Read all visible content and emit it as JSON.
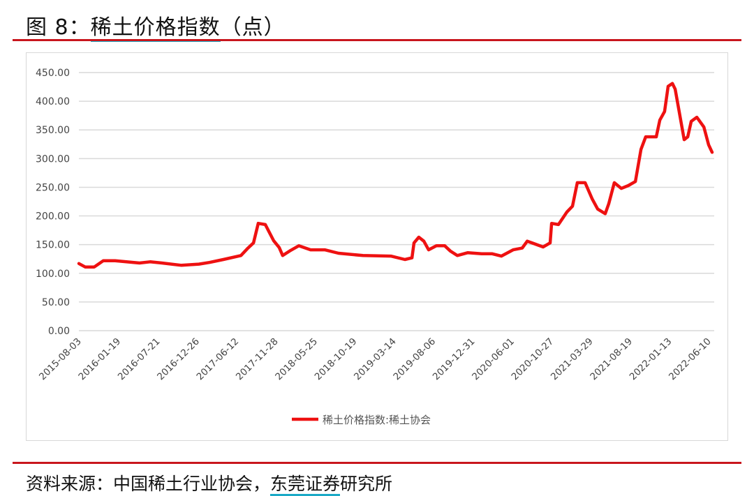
{
  "title": {
    "prefix": "图 8：",
    "main": "稀土价格指数",
    "suffix": "（点）"
  },
  "source": {
    "prefix": "资料来源：中国稀土行业协会，",
    "highlight": "东莞证券",
    "suffix": "研究所"
  },
  "colors": {
    "series": "#ee1111",
    "rule": "#c8161d",
    "underline": "#1aa9c6",
    "grid": "#d9d9d9"
  },
  "chart_data": {
    "type": "line",
    "title": "",
    "xlabel": "",
    "ylabel": "",
    "ylim": [
      0,
      450
    ],
    "yticks": [
      "0.00",
      "50.00",
      "100.00",
      "150.00",
      "200.00",
      "250.00",
      "300.00",
      "350.00",
      "400.00",
      "450.00"
    ],
    "xticks": [
      "2015-08-03",
      "2016-01-19",
      "2016-07-21",
      "2016-12-26",
      "2017-06-12",
      "2017-11-28",
      "2018-05-25",
      "2018-10-19",
      "2019-03-14",
      "2019-08-06",
      "2019-12-31",
      "2020-06-01",
      "2020-10-27",
      "2021-03-29",
      "2021-08-19",
      "2022-01-13",
      "2022-06-10"
    ],
    "grid": true,
    "legend_position": "bottom",
    "series": [
      {
        "name": "稀土价格指数:稀土协会",
        "points": [
          [
            "2015-08-03",
            117
          ],
          [
            "2015-08-28",
            111
          ],
          [
            "2015-10-03",
            111
          ],
          [
            "2015-11-08",
            122
          ],
          [
            "2015-12-25",
            122
          ],
          [
            "2016-03-31",
            118
          ],
          [
            "2016-05-12",
            120
          ],
          [
            "2016-06-28",
            118
          ],
          [
            "2016-09-14",
            114
          ],
          [
            "2016-11-22",
            116
          ],
          [
            "2017-01-03",
            119
          ],
          [
            "2017-02-27",
            124
          ],
          [
            "2017-05-08",
            131
          ],
          [
            "2017-06-05",
            144
          ],
          [
            "2017-06-27",
            153
          ],
          [
            "2017-07-16",
            187
          ],
          [
            "2017-08-13",
            185
          ],
          [
            "2017-09-15",
            157
          ],
          [
            "2017-10-07",
            145
          ],
          [
            "2017-10-21",
            131
          ],
          [
            "2017-11-18",
            139
          ],
          [
            "2017-12-24",
            148
          ],
          [
            "2018-02-09",
            141
          ],
          [
            "2018-04-06",
            141
          ],
          [
            "2018-05-31",
            135
          ],
          [
            "2018-09-05",
            131
          ],
          [
            "2018-12-25",
            130
          ],
          [
            "2019-02-19",
            124
          ],
          [
            "2019-03-19",
            127
          ],
          [
            "2019-03-27",
            153
          ],
          [
            "2019-04-15",
            163
          ],
          [
            "2019-05-05",
            156
          ],
          [
            "2019-05-24",
            141
          ],
          [
            "2019-06-24",
            148
          ],
          [
            "2019-07-27",
            148
          ],
          [
            "2019-08-18",
            139
          ],
          [
            "2019-09-15",
            131
          ],
          [
            "2019-10-27",
            136
          ],
          [
            "2019-12-21",
            134
          ],
          [
            "2020-02-01",
            134
          ],
          [
            "2020-03-08",
            130
          ],
          [
            "2020-04-24",
            141
          ],
          [
            "2020-05-30",
            144
          ],
          [
            "2020-06-19",
            156
          ],
          [
            "2020-08-21",
            146
          ],
          [
            "2020-09-18",
            153
          ],
          [
            "2020-09-24",
            187
          ],
          [
            "2020-10-21",
            185
          ],
          [
            "2020-11-24",
            207
          ],
          [
            "2020-12-16",
            217
          ],
          [
            "2021-01-04",
            258
          ],
          [
            "2021-02-04",
            258
          ],
          [
            "2021-03-04",
            230
          ],
          [
            "2021-03-26",
            212
          ],
          [
            "2021-04-25",
            204
          ],
          [
            "2021-05-09",
            221
          ],
          [
            "2021-05-31",
            258
          ],
          [
            "2021-06-28",
            248
          ],
          [
            "2021-07-26",
            253
          ],
          [
            "2021-08-23",
            260
          ],
          [
            "2021-09-14",
            316
          ],
          [
            "2021-10-03",
            338
          ],
          [
            "2021-11-14",
            338
          ],
          [
            "2021-11-28",
            367
          ],
          [
            "2021-12-17",
            382
          ],
          [
            "2021-12-31",
            426
          ],
          [
            "2022-01-17",
            431
          ],
          [
            "2022-01-28",
            421
          ],
          [
            "2022-03-05",
            333
          ],
          [
            "2022-03-19",
            338
          ],
          [
            "2022-04-02",
            365
          ],
          [
            "2022-04-24",
            372
          ],
          [
            "2022-05-22",
            355
          ],
          [
            "2022-06-10",
            324
          ],
          [
            "2022-06-24",
            311
          ]
        ]
      }
    ]
  }
}
